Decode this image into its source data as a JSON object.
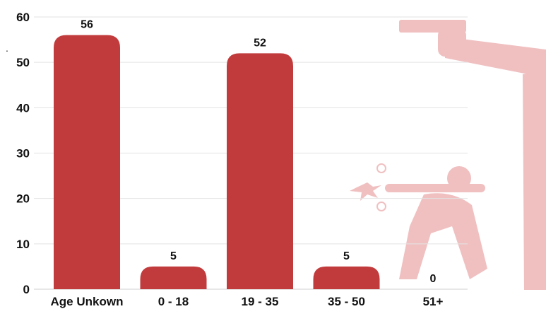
{
  "chart_data": {
    "type": "bar",
    "categories": [
      "Age Unkown",
      "0 - 18",
      "19 - 35",
      "35 - 50",
      "51+"
    ],
    "values": [
      56,
      5,
      52,
      5,
      0
    ],
    "title": "",
    "xlabel": "",
    "ylabel": "",
    "ylim": [
      0,
      60
    ],
    "yticks": [
      0,
      10,
      20,
      30,
      40,
      50,
      60
    ],
    "grid": true,
    "data_labels": [
      "56",
      "5",
      "52",
      "5",
      "0"
    ],
    "legend": "none",
    "colors": {
      "bar": "#c23b3c",
      "illustration": "#f0c0c1"
    }
  },
  "decoration": {
    "icon": "gunman-illustration-icon",
    "mark": "."
  }
}
